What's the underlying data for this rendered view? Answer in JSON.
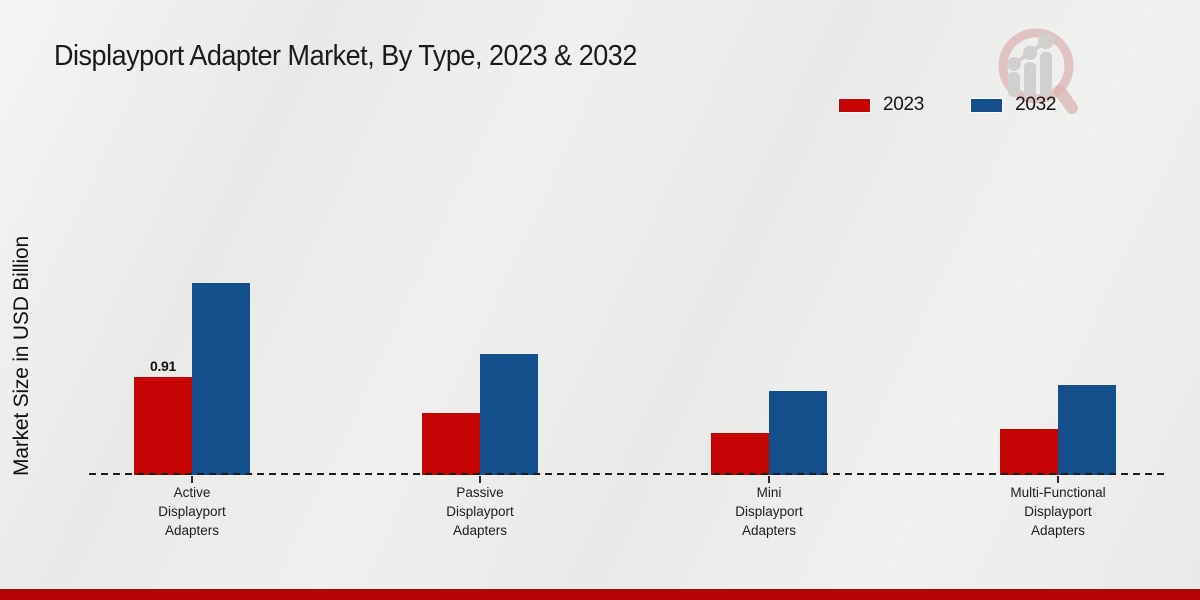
{
  "title": "Displayport Adapter Market, By Type, 2023 & 2032",
  "ylabel": "Market Size in USD Billion",
  "colors": {
    "series_2023": "#c70404",
    "series_2032": "#134f8c",
    "footer_bar": "#b20404",
    "axis_line": "#1d1d1d",
    "background": "#e9e9e8",
    "logo_ring": "#d9b6b4",
    "logo_bars": "#d2d0cf"
  },
  "legend": [
    {
      "label": "2023",
      "color": "#c70404"
    },
    {
      "label": "2032",
      "color": "#134f8c"
    }
  ],
  "logo_icon": "magnifier-growth-chart-logo",
  "chart_data": {
    "type": "bar",
    "title": "Displayport Adapter Market, By Type, 2023 & 2032",
    "xlabel": "",
    "ylabel": "Market Size in USD Billion",
    "categories": [
      "Active Displayport Adapters",
      "Passive Displayport Adapters",
      "Mini Displayport Adapters",
      "Multi-Functional Displayport Adapters"
    ],
    "series": [
      {
        "name": "2023",
        "color": "#c70404",
        "values": [
          0.91,
          0.58,
          0.39,
          0.43
        ]
      },
      {
        "name": "2032",
        "color": "#134f8c",
        "values": [
          1.78,
          1.12,
          0.78,
          0.84
        ]
      }
    ],
    "annotations": [
      {
        "series_index": 0,
        "category_index": 0,
        "text": "0.91"
      }
    ],
    "ylim": [
      0,
      2
    ],
    "grid": false,
    "y_axis_ticks_visible": false,
    "x_axis_style": "dashed",
    "legend_position": "top-right"
  }
}
